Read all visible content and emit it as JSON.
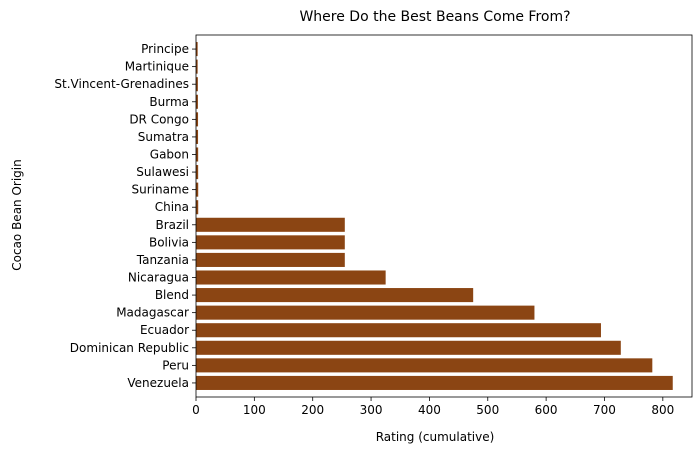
{
  "chart_data": {
    "type": "bar",
    "orientation": "horizontal",
    "title": "Where Do the Best Beans Come From?",
    "xlabel": "Rating (cumulative)",
    "ylabel": "Cocao Bean Origin",
    "xlim": [
      0,
      850
    ],
    "xticks": [
      0,
      100,
      200,
      300,
      400,
      500,
      600,
      700,
      800
    ],
    "grid": false,
    "bar_color": "#8B4513",
    "categories": [
      "Venezuela",
      "Peru",
      "Dominican Republic",
      "Ecuador",
      "Madagascar",
      "Blend",
      "Nicaragua",
      "Tanzania",
      "Bolivia",
      "Brazil",
      "China",
      "Suriname",
      "Sulawesi",
      "Gabon",
      "Sumatra",
      "DR Congo",
      "Burma",
      "St.Vincent-Grenadines",
      "Martinique",
      "Principe"
    ],
    "values": [
      817,
      782,
      728,
      694,
      580,
      475,
      325,
      255,
      255,
      255,
      3.8,
      3.8,
      3.7,
      3.7,
      3.5,
      3.5,
      3.3,
      3.2,
      2.8,
      2.8
    ]
  }
}
